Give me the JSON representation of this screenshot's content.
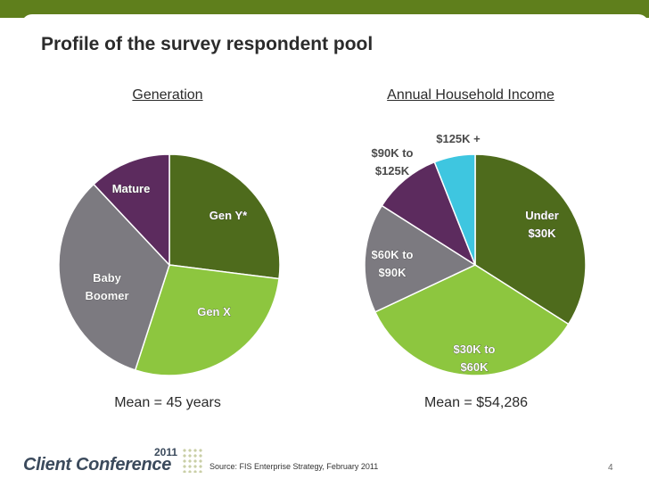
{
  "title": "Profile of the survey respondent pool",
  "chart_data": [
    {
      "type": "pie",
      "title": "Generation",
      "categories": [
        "Gen Y*",
        "Gen X",
        "Baby Boomer",
        "Mature"
      ],
      "values": [
        27,
        28,
        33,
        12
      ],
      "colors": [
        "#4e6b1c",
        "#8dc63f",
        "#7c7a80",
        "#5c2b5e"
      ],
      "label_color": [
        "#ffffff",
        "#ffffff",
        "#ffffff",
        "#ffffff"
      ],
      "mean_text": "Mean = 45 years"
    },
    {
      "type": "pie",
      "title": "Annual Household Income",
      "categories": [
        "Under $30K",
        "$30K to $60K",
        "$60K to $90K",
        "$90K to $125K",
        "$125K +"
      ],
      "values": [
        34,
        34,
        16,
        10,
        6
      ],
      "colors": [
        "#4e6b1c",
        "#8dc63f",
        "#7c7a80",
        "#5c2b5e",
        "#3ec6e0"
      ],
      "mean_text": "Mean = $54,286"
    }
  ],
  "footer": {
    "logo_name": "Client Conference",
    "logo_year": "2011",
    "source": "Source: FIS Enterprise Strategy, February 2011",
    "page_number": "4"
  },
  "colors": {
    "accent": "#5f7f1c"
  }
}
